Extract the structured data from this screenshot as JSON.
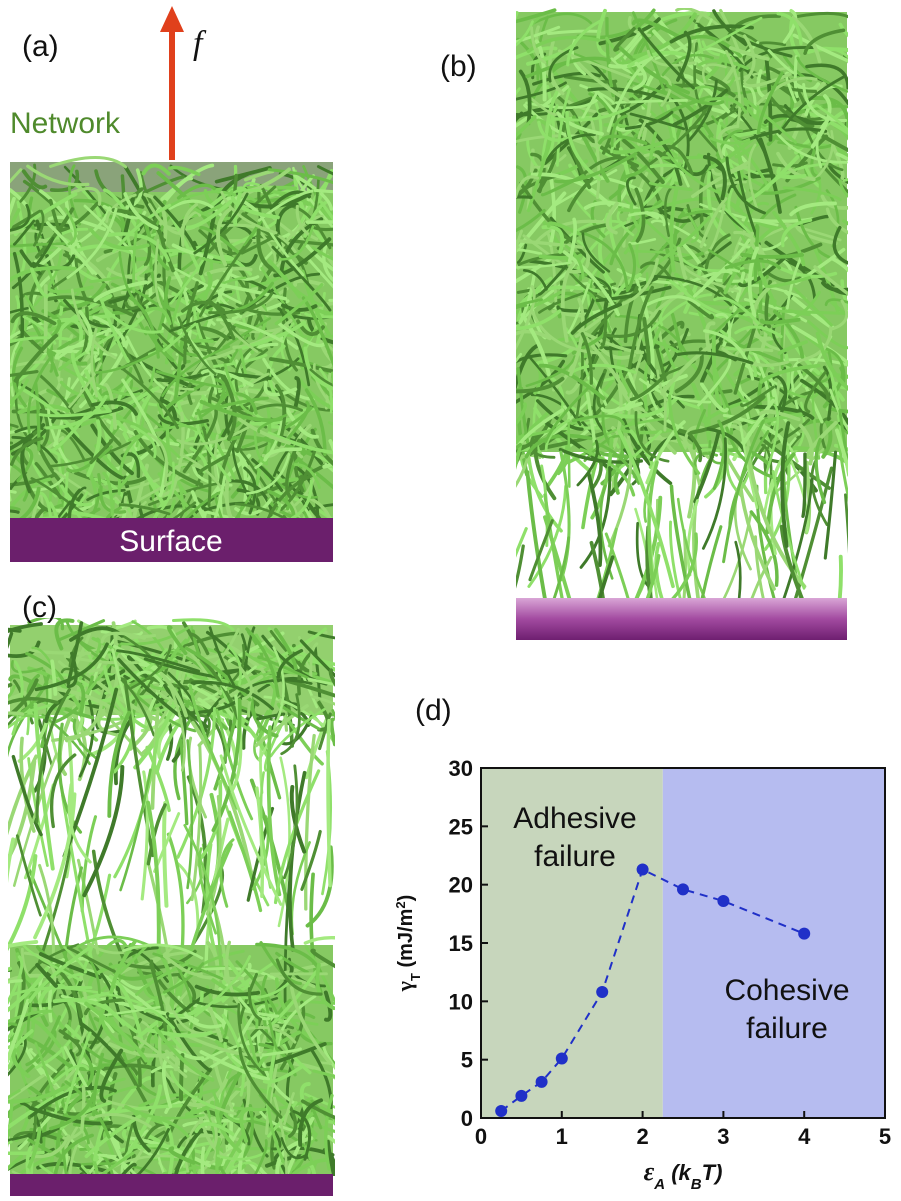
{
  "panels": {
    "a": {
      "label": "(a)",
      "force": "f",
      "network": "Network",
      "surface": "Surface"
    },
    "b": {
      "label": "(b)"
    },
    "c": {
      "label": "(c)"
    },
    "d": {
      "label": "(d)"
    }
  },
  "chart_data": {
    "type": "scatter",
    "x": [
      0.25,
      0.5,
      0.75,
      1,
      1.5,
      2,
      2.5,
      3,
      4
    ],
    "series": [
      {
        "color": "#2030c8",
        "values": [
          0.6,
          1.9,
          3.1,
          5.1,
          10.8,
          21.3,
          19.6,
          18.6,
          15.8
        ]
      }
    ],
    "line_style": "dashed",
    "xlim": [
      0,
      5
    ],
    "ylim": [
      0,
      30
    ],
    "xticks": [
      0,
      1,
      2,
      3,
      4,
      5
    ],
    "yticks": [
      0,
      5,
      10,
      15,
      20,
      25,
      30
    ],
    "xlabel": [
      "ε",
      "A",
      " (k",
      "B",
      "T)"
    ],
    "ylabel": [
      "γ",
      "T",
      " (mJ/m",
      "2",
      ")"
    ],
    "regions": [
      {
        "from": 0,
        "to": 2.25,
        "color": "#c7d6bc",
        "label": [
          "Adhesive",
          "failure"
        ]
      },
      {
        "from": 2.25,
        "to": 5,
        "color": "#b6bcf0",
        "label": [
          "Cohesive",
          "failure"
        ]
      }
    ]
  }
}
